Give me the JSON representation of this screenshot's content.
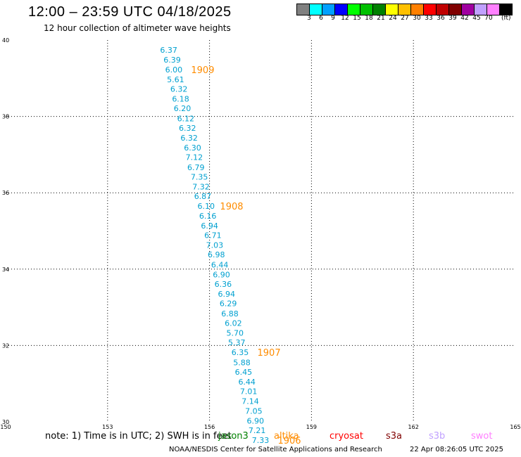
{
  "header": {
    "title": "12:00 – 23:59 UTC 04/18/2025",
    "subtitle": "12 hour collection of altimeter wave heights"
  },
  "colorbar": {
    "colors": [
      "#808080",
      "#00ffff",
      "#00a0ff",
      "#0000ff",
      "#00ff00",
      "#00c000",
      "#008000",
      "#ffff00",
      "#ffc000",
      "#ff8000",
      "#ff0000",
      "#c00000",
      "#800000",
      "#a000a0",
      "#c0a0ff",
      "#ff80ff",
      "#000000"
    ],
    "labels": [
      "3",
      "6",
      "9",
      "12",
      "15",
      "18",
      "21",
      "24",
      "27",
      "30",
      "33",
      "36",
      "39",
      "42",
      "45",
      "70"
    ],
    "unit": "(ft)"
  },
  "chart_data": {
    "type": "scatter",
    "xlim": [
      150,
      165
    ],
    "ylim": [
      30,
      40
    ],
    "x_ticks": [
      "150",
      "153",
      "156",
      "159",
      "162",
      "165"
    ],
    "y_ticks": [
      "30",
      "32",
      "34",
      "36",
      "38",
      "40"
    ],
    "grid": true,
    "series": [
      {
        "color": "#00a0d0",
        "points": [
          {
            "lon": 154.8,
            "lat": 39.74,
            "v": "6.37"
          },
          {
            "lon": 154.9,
            "lat": 39.48,
            "v": "6.39"
          },
          {
            "lon": 154.95,
            "lat": 39.23,
            "v": "6.00"
          },
          {
            "lon": 155.0,
            "lat": 38.97,
            "v": "5.61"
          },
          {
            "lon": 155.1,
            "lat": 38.72,
            "v": "6.32"
          },
          {
            "lon": 155.15,
            "lat": 38.46,
            "v": "6.18"
          },
          {
            "lon": 155.2,
            "lat": 38.21,
            "v": "6.20"
          },
          {
            "lon": 155.3,
            "lat": 37.95,
            "v": "6.12"
          },
          {
            "lon": 155.35,
            "lat": 37.7,
            "v": "6.32"
          },
          {
            "lon": 155.4,
            "lat": 37.44,
            "v": "6.32"
          },
          {
            "lon": 155.5,
            "lat": 37.18,
            "v": "6.30"
          },
          {
            "lon": 155.55,
            "lat": 36.93,
            "v": "7.12"
          },
          {
            "lon": 155.6,
            "lat": 36.67,
            "v": "6.79"
          },
          {
            "lon": 155.7,
            "lat": 36.42,
            "v": "7.35"
          },
          {
            "lon": 155.75,
            "lat": 36.16,
            "v": "7.32"
          },
          {
            "lon": 155.8,
            "lat": 35.91,
            "v": "6.87"
          },
          {
            "lon": 155.9,
            "lat": 35.65,
            "v": "6.10"
          },
          {
            "lon": 155.95,
            "lat": 35.4,
            "v": "6.16"
          },
          {
            "lon": 156.0,
            "lat": 35.14,
            "v": "6.94"
          },
          {
            "lon": 156.1,
            "lat": 34.89,
            "v": "6.71"
          },
          {
            "lon": 156.15,
            "lat": 34.63,
            "v": "7.03"
          },
          {
            "lon": 156.2,
            "lat": 34.38,
            "v": "6.98"
          },
          {
            "lon": 156.3,
            "lat": 34.12,
            "v": "6.44"
          },
          {
            "lon": 156.35,
            "lat": 33.86,
            "v": "6.90"
          },
          {
            "lon": 156.4,
            "lat": 33.61,
            "v": "6.36"
          },
          {
            "lon": 156.5,
            "lat": 33.35,
            "v": "6.94"
          },
          {
            "lon": 156.55,
            "lat": 33.1,
            "v": "6.29"
          },
          {
            "lon": 156.6,
            "lat": 32.84,
            "v": "6.88"
          },
          {
            "lon": 156.7,
            "lat": 32.59,
            "v": "6.02"
          },
          {
            "lon": 156.75,
            "lat": 32.33,
            "v": "5.70"
          },
          {
            "lon": 156.8,
            "lat": 32.08,
            "v": "5.37"
          },
          {
            "lon": 156.9,
            "lat": 31.82,
            "v": "6.35"
          },
          {
            "lon": 156.95,
            "lat": 31.56,
            "v": "5.88"
          },
          {
            "lon": 157.0,
            "lat": 31.31,
            "v": "6.45"
          },
          {
            "lon": 157.1,
            "lat": 31.05,
            "v": "6.44"
          },
          {
            "lon": 157.15,
            "lat": 30.8,
            "v": "7.01"
          },
          {
            "lon": 157.2,
            "lat": 30.54,
            "v": "7.14"
          },
          {
            "lon": 157.3,
            "lat": 30.29,
            "v": "7.05"
          },
          {
            "lon": 157.35,
            "lat": 30.03,
            "v": "6.90"
          },
          {
            "lon": 157.4,
            "lat": 29.78,
            "v": "7.21"
          },
          {
            "lon": 157.5,
            "lat": 29.52,
            "v": "7.33"
          }
        ]
      }
    ],
    "time_labels": [
      {
        "lon": 155.8,
        "lat": 39.23,
        "text": "1909"
      },
      {
        "lon": 156.65,
        "lat": 35.65,
        "text": "1908"
      },
      {
        "lon": 157.75,
        "lat": 31.82,
        "text": "1907"
      },
      {
        "lon": 158.35,
        "lat": 29.52,
        "text": "1906"
      }
    ],
    "time_label_color": "#ff8c00"
  },
  "footer": {
    "note": "note: 1) Time is in UTC; 2) SWH is in feet",
    "credit": "NOAA/NESDIS Center for Satellite Applications and Research",
    "generated": "22 Apr 08:26:05 UTC 2025"
  },
  "legend": [
    {
      "label": "jason3",
      "color": "#008000"
    },
    {
      "label": "altika",
      "color": "#ff8c00"
    },
    {
      "label": "cryosat",
      "color": "#ff0000"
    },
    {
      "label": "s3a",
      "color": "#800000"
    },
    {
      "label": "s3b",
      "color": "#c0a0ff"
    },
    {
      "label": "swot",
      "color": "#ff80ff"
    }
  ]
}
